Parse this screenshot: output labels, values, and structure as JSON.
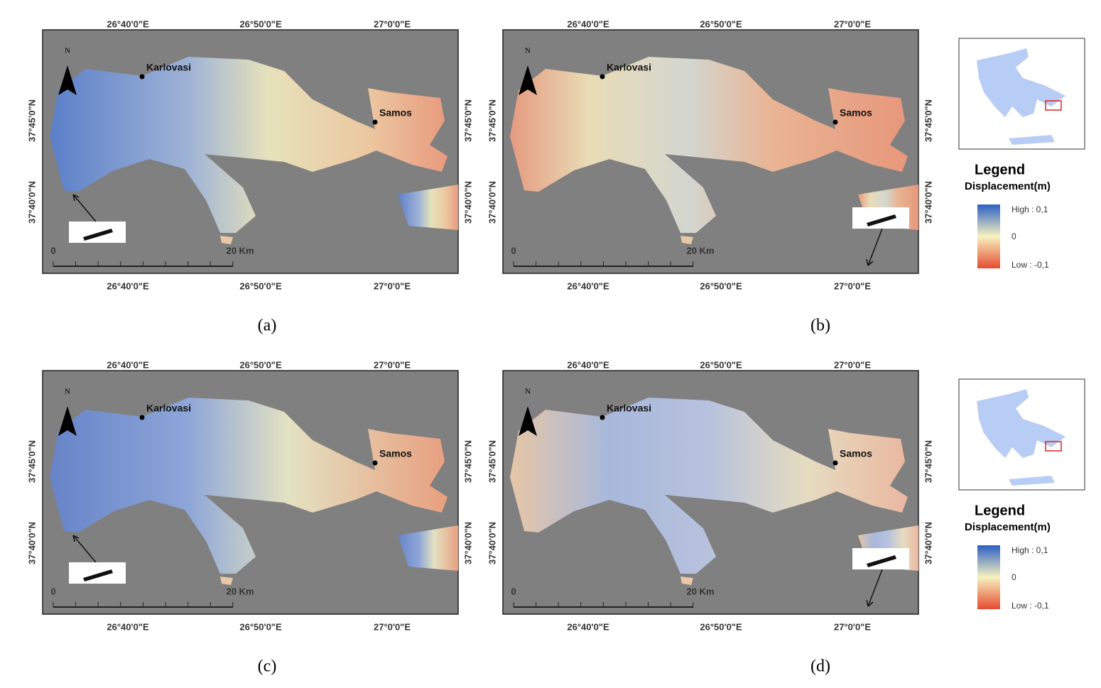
{
  "panels": [
    {
      "label": "(a)",
      "north": "N",
      "top_ticks": [
        "26°40'0\"E",
        "26°50'0\"E",
        "27°0'0\"E"
      ],
      "bottom_ticks": [
        "26°40'0\"E",
        "26°50'0\"E",
        "27°0'0\"E"
      ],
      "left_ticks": [
        "37°45'0\"N",
        "37°40'0\"N"
      ],
      "right_ticks": [
        "37°45'0\"N",
        "37°40'0\"N"
      ],
      "places": [
        "Karlovasi",
        "Samos"
      ],
      "scale": [
        "0",
        "20 Km"
      ]
    },
    {
      "label": "(b)",
      "north": "N",
      "top_ticks": [
        "26°40'0\"E",
        "26°50'0\"E",
        "27°0'0\"E"
      ],
      "bottom_ticks": [
        "26°40'0\"E",
        "26°50'0\"E",
        "27°0'0\"E"
      ],
      "left_ticks": [
        "37°45'0\"N",
        "37°40'0\"N"
      ],
      "right_ticks": [
        "37°45'0\"N",
        "37°40'0\"N"
      ],
      "places": [
        "Karlovasi",
        "Samos"
      ],
      "scale": [
        "0",
        "20 Km"
      ]
    },
    {
      "label": "(c)",
      "north": "N",
      "top_ticks": [
        "26°40'0\"E",
        "26°50'0\"E",
        "27°0'0\"E"
      ],
      "bottom_ticks": [
        "26°40'0\"E",
        "26°50'0\"E",
        "27°0'0\"E"
      ],
      "left_ticks": [
        "37°45'0\"N",
        "37°40'0\"N"
      ],
      "right_ticks": [
        "37°45'0\"N",
        "37°40'0\"N"
      ],
      "places": [
        "Karlovasi",
        "Samos"
      ],
      "scale": [
        "0",
        "20 Km"
      ]
    },
    {
      "label": "(d)",
      "north": "N",
      "top_ticks": [
        "26°40'0\"E",
        "26°50'0\"E",
        "27°0'0\"E"
      ],
      "bottom_ticks": [
        "26°40'0\"E",
        "26°50'0\"E",
        "27°0'0\"E"
      ],
      "left_ticks": [
        "37°45'0\"N",
        "37°40'0\"N"
      ],
      "right_ticks": [
        "37°45'0\"N",
        "37°40'0\"N"
      ],
      "places": [
        "Karlovasi",
        "Samos"
      ],
      "scale": [
        "0",
        "20 Km"
      ]
    }
  ],
  "legends": [
    {
      "title": "Legend",
      "subtitle": "Displacement(m)",
      "high": "High : 0,1",
      "mid": "0",
      "low": "Low : -0,1"
    },
    {
      "title": "Legend",
      "subtitle": "Displacement(m)",
      "high": "High : 0,1",
      "mid": "0",
      "low": "Low : -0,1"
    }
  ]
}
